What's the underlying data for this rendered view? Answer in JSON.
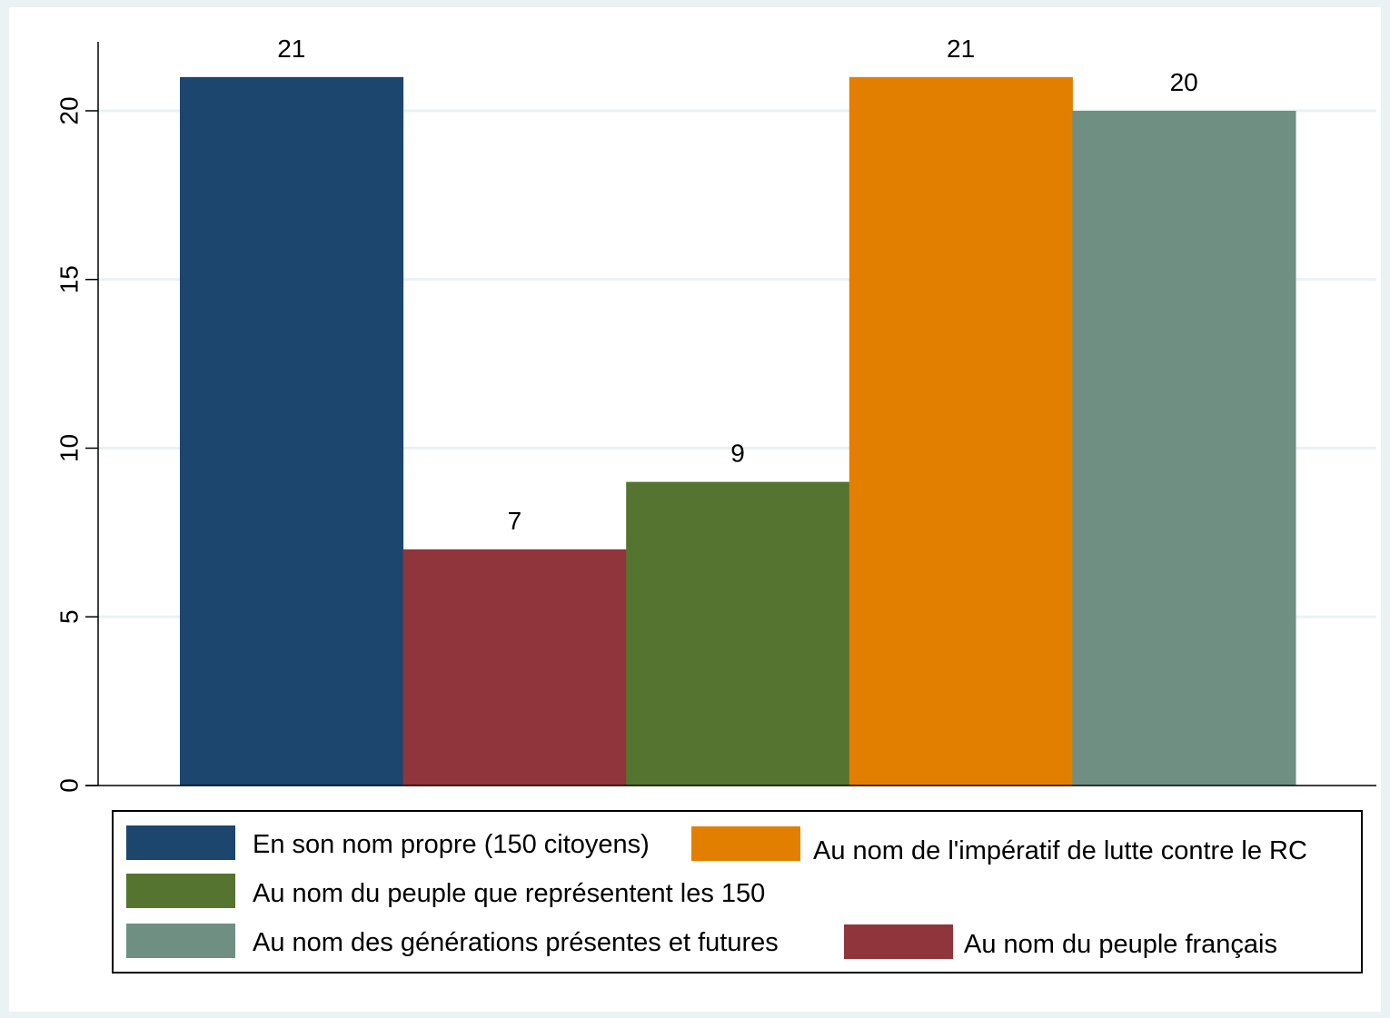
{
  "chart_data": {
    "type": "bar",
    "title": "",
    "xlabel": "",
    "ylabel": "",
    "ylim": [
      0,
      22
    ],
    "yticks": [
      0,
      5,
      10,
      15,
      20
    ],
    "grid": true,
    "legend_position": "bottom",
    "series": [
      {
        "name": "En son nom propre (150 citoyens)",
        "value": 21,
        "color": "#1c466e"
      },
      {
        "name": "Au nom du peuple français",
        "value": 7,
        "color": "#90353c"
      },
      {
        "name": "Au nom du peuple que représentent les 150",
        "value": 9,
        "color": "#55742f"
      },
      {
        "name": "Au nom de l'impératif de lutte contre le RC",
        "value": 21,
        "color": "#e27f00"
      },
      {
        "name": "Au nom des générations présentes et futures",
        "value": 20,
        "color": "#6f8f82"
      }
    ],
    "legend_order": [
      0,
      3,
      2,
      4,
      1
    ],
    "colors": {
      "background": "#eaf2f3",
      "plot_background": "#ffffff",
      "gridline": "#eaf2f3",
      "axis": "#000000"
    }
  }
}
